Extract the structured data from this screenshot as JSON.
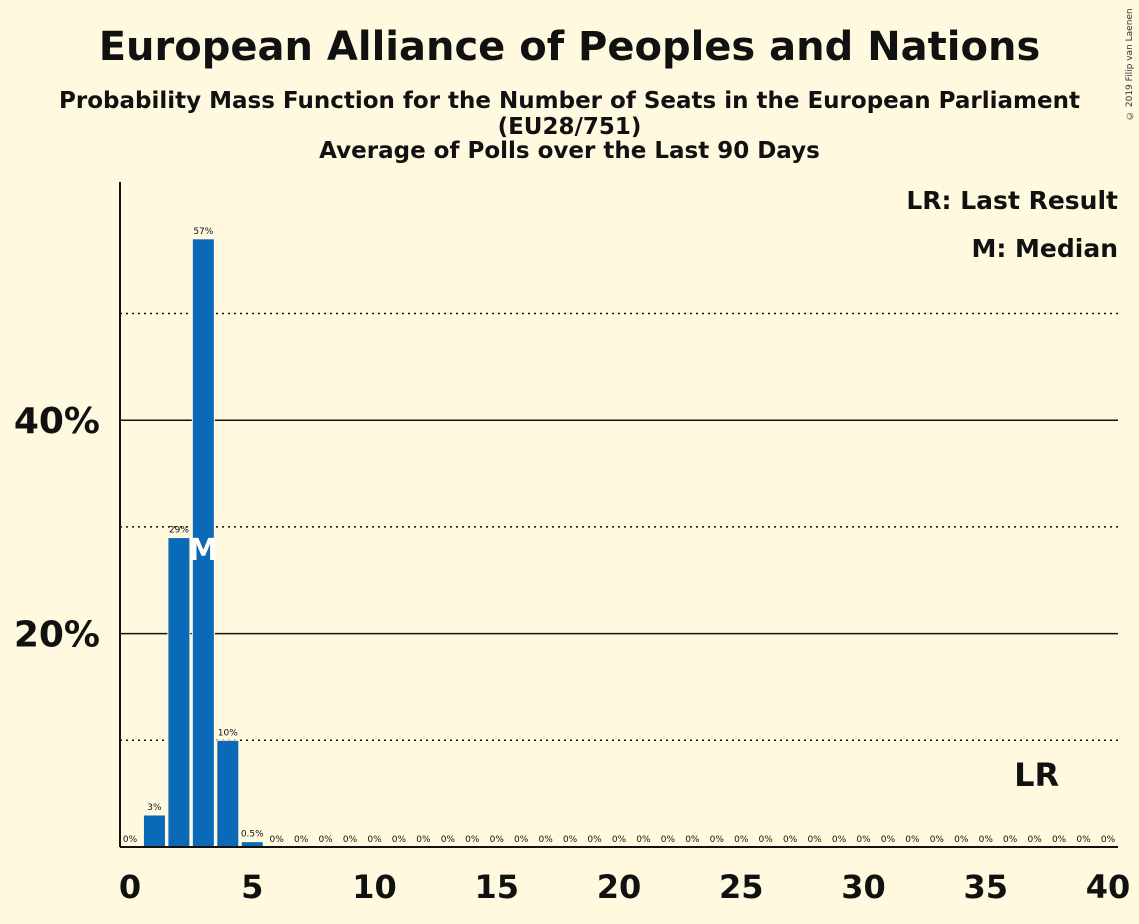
{
  "title": "European Alliance of Peoples and Nations",
  "subtitle": "Probability Mass Function for the Number of Seats in the European Parliament (EU28/751)",
  "subtitle2": "Average of Polls over the Last 90 Days",
  "copyright": "© 2019 Filip van Laenen",
  "legend": {
    "last_result": "LR: Last Result",
    "median": "M: Median"
  },
  "colors": {
    "background": "#fff9e0",
    "bar": "#0a6ab8",
    "text": "#111111"
  },
  "chart_data": {
    "type": "bar",
    "title": "European Alliance of Peoples and Nations",
    "xlabel": "",
    "ylabel": "",
    "x": [
      0,
      1,
      2,
      3,
      4,
      5,
      6,
      7,
      8,
      9,
      10,
      11,
      12,
      13,
      14,
      15,
      16,
      17,
      18,
      19,
      20,
      21,
      22,
      23,
      24,
      25,
      26,
      27,
      28,
      29,
      30,
      31,
      32,
      33,
      34,
      35,
      36,
      37,
      38,
      39,
      40
    ],
    "values": [
      0,
      3,
      29,
      57,
      10,
      0.5,
      0,
      0,
      0,
      0,
      0,
      0,
      0,
      0,
      0,
      0,
      0,
      0,
      0,
      0,
      0,
      0,
      0,
      0,
      0,
      0,
      0,
      0,
      0,
      0,
      0,
      0,
      0,
      0,
      0,
      0,
      0,
      0,
      0,
      0,
      0
    ],
    "value_labels": [
      "0%",
      "3%",
      "29%",
      "57%",
      "10%",
      "0.5%",
      "0%",
      "0%",
      "0%",
      "0%",
      "0%",
      "0%",
      "0%",
      "0%",
      "0%",
      "0%",
      "0%",
      "0%",
      "0%",
      "0%",
      "0%",
      "0%",
      "0%",
      "0%",
      "0%",
      "0%",
      "0%",
      "0%",
      "0%",
      "0%",
      "0%",
      "0%",
      "0%",
      "0%",
      "0%",
      "0%",
      "0%",
      "0%",
      "0%",
      "0%",
      "0%"
    ],
    "ylim": [
      0,
      62
    ],
    "xlim": [
      0,
      40
    ],
    "x_ticks": [
      "0",
      "5",
      "10",
      "15",
      "20",
      "25",
      "30",
      "35",
      "40"
    ],
    "y_ticks_major": [
      {
        "value": 20,
        "label": "20%"
      },
      {
        "value": 40,
        "label": "40%"
      }
    ],
    "y_gridlines_dotted": [
      10,
      30,
      50
    ],
    "median": {
      "x": 3,
      "label": "M"
    },
    "last_result": {
      "x": 37,
      "label": "LR"
    },
    "legend_position": "top-right"
  }
}
